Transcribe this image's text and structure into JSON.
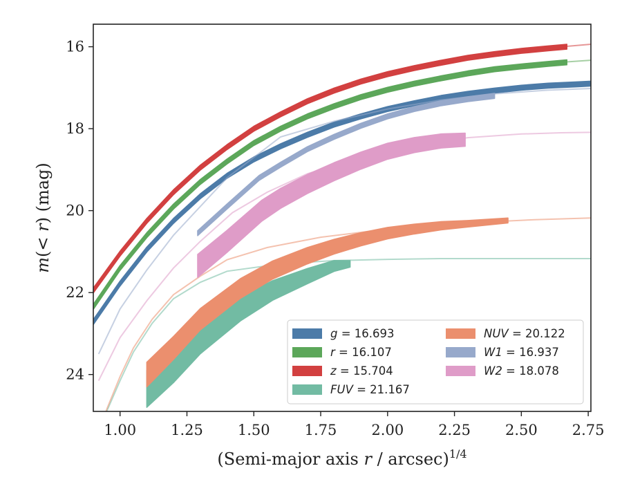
{
  "chart_data": {
    "type": "line",
    "title": "",
    "xlabel_main": "(Semi-major axis ",
    "xlabel_var": "r",
    "xlabel_unit": " / arcsec)",
    "xlabel_sup": "1/4",
    "ylabel_pre": "m(< ",
    "ylabel_var": "r",
    "ylabel_post": ") (mag)",
    "xlim": [
      0.9,
      2.76
    ],
    "ylim": [
      15.45,
      24.9
    ],
    "y_inverted": true,
    "xticks": [
      1.0,
      1.25,
      1.5,
      1.75,
      2.0,
      2.25,
      2.5,
      2.75
    ],
    "xtick_labels": [
      "1.00",
      "1.25",
      "1.50",
      "1.75",
      "2.00",
      "2.25",
      "2.50",
      "2.75"
    ],
    "yticks": [
      16,
      18,
      20,
      22,
      24
    ],
    "ytick_labels": [
      "16",
      "18",
      "20",
      "22",
      "24"
    ],
    "grid": false,
    "legend_position": "lower-right",
    "series": [
      {
        "name": "g",
        "legend_label": "g = 16.693",
        "color": "#4c7ba8",
        "band": 0.06,
        "x": [
          0.9,
          1.0,
          1.1,
          1.2,
          1.3,
          1.4,
          1.5,
          1.6,
          1.7,
          1.8,
          1.9,
          2.0,
          2.1,
          2.2,
          2.3,
          2.4,
          2.5,
          2.6,
          2.7,
          2.76
        ],
        "y": [
          22.72,
          21.78,
          20.95,
          20.25,
          19.65,
          19.15,
          18.75,
          18.43,
          18.15,
          17.9,
          17.7,
          17.52,
          17.38,
          17.25,
          17.15,
          17.07,
          17.0,
          16.95,
          16.92,
          16.9
        ],
        "y_model": [
          22.75,
          21.8,
          20.96,
          20.26,
          19.66,
          19.16,
          18.76,
          18.44,
          18.16,
          17.91,
          17.71,
          17.53,
          17.39,
          17.26,
          17.15,
          17.07,
          17.0,
          16.95,
          16.92,
          16.9
        ],
        "x_end": 2.76
      },
      {
        "name": "r",
        "legend_label": "r = 16.107",
        "color": "#5ca75a",
        "band": 0.06,
        "x": [
          0.9,
          1.0,
          1.1,
          1.2,
          1.3,
          1.4,
          1.5,
          1.6,
          1.7,
          1.8,
          1.9,
          2.0,
          2.1,
          2.2,
          2.3,
          2.4,
          2.5,
          2.6,
          2.67
        ],
        "y": [
          22.35,
          21.4,
          20.6,
          19.9,
          19.3,
          18.8,
          18.35,
          18.0,
          17.7,
          17.45,
          17.23,
          17.05,
          16.9,
          16.77,
          16.65,
          16.55,
          16.48,
          16.42,
          16.38
        ],
        "y_model": [
          22.38,
          21.42,
          20.61,
          19.91,
          19.31,
          18.81,
          18.36,
          18.01,
          17.71,
          17.46,
          17.24,
          17.06,
          16.9,
          16.77,
          16.65,
          16.55,
          16.47,
          16.41,
          16.37,
          16.33
        ],
        "x_model": [
          0.9,
          1.0,
          1.1,
          1.2,
          1.3,
          1.4,
          1.5,
          1.6,
          1.7,
          1.8,
          1.9,
          2.0,
          2.1,
          2.2,
          2.3,
          2.4,
          2.5,
          2.6,
          2.67,
          2.76
        ]
      },
      {
        "name": "z",
        "legend_label": "z = 15.704",
        "color": "#d24040",
        "band": 0.06,
        "x": [
          0.9,
          1.0,
          1.1,
          1.2,
          1.3,
          1.4,
          1.5,
          1.6,
          1.7,
          1.8,
          1.9,
          2.0,
          2.1,
          2.2,
          2.3,
          2.4,
          2.5,
          2.6,
          2.67
        ],
        "y": [
          21.95,
          21.05,
          20.25,
          19.55,
          18.95,
          18.45,
          18.0,
          17.65,
          17.33,
          17.07,
          16.85,
          16.67,
          16.52,
          16.39,
          16.27,
          16.18,
          16.1,
          16.04,
          16.0
        ],
        "y_model": [
          21.98,
          21.07,
          20.26,
          19.56,
          18.96,
          18.46,
          18.01,
          17.66,
          17.34,
          17.08,
          16.86,
          16.68,
          16.53,
          16.4,
          16.28,
          16.18,
          16.1,
          16.03,
          15.99,
          15.94
        ],
        "x_model": [
          0.9,
          1.0,
          1.1,
          1.2,
          1.3,
          1.4,
          1.5,
          1.6,
          1.7,
          1.8,
          1.9,
          2.0,
          2.1,
          2.2,
          2.3,
          2.4,
          2.5,
          2.6,
          2.67,
          2.76
        ]
      },
      {
        "name": "FUV",
        "legend_label": "FUV = 21.167",
        "color": "#72bba3",
        "band_start": 0.45,
        "band_end": 0.08,
        "x": [
          1.1,
          1.2,
          1.3,
          1.45,
          1.57,
          1.7,
          1.8,
          1.86
        ],
        "y": [
          24.35,
          23.8,
          23.15,
          22.4,
          21.95,
          21.6,
          21.35,
          21.3
        ],
        "y_model": [
          26.0,
          24.9,
          24.15,
          23.45,
          22.75,
          22.15,
          21.75,
          21.48,
          21.3,
          21.22,
          21.19,
          21.17,
          21.17,
          21.17
        ],
        "x_model": [
          0.9,
          0.95,
          1.0,
          1.05,
          1.12,
          1.2,
          1.3,
          1.4,
          1.6,
          1.8,
          2.0,
          2.2,
          2.5,
          2.76
        ]
      },
      {
        "name": "NUV",
        "legend_label": "NUV = 20.122",
        "color": "#eb8f6e",
        "band_start": 0.3,
        "band_end": 0.06,
        "x": [
          1.1,
          1.2,
          1.3,
          1.45,
          1.57,
          1.7,
          1.8,
          1.9,
          2.0,
          2.1,
          2.2,
          2.3,
          2.45
        ],
        "y": [
          24.0,
          23.35,
          22.65,
          21.9,
          21.45,
          21.1,
          20.88,
          20.7,
          20.55,
          20.45,
          20.37,
          20.32,
          20.24
        ],
        "y_model": [
          25.8,
          24.85,
          24.05,
          23.35,
          22.65,
          22.05,
          21.6,
          21.2,
          20.9,
          20.65,
          20.45,
          20.3,
          20.22,
          20.18
        ],
        "x_model": [
          0.9,
          0.95,
          1.0,
          1.05,
          1.12,
          1.2,
          1.3,
          1.4,
          1.55,
          1.75,
          2.0,
          2.3,
          2.55,
          2.76
        ]
      },
      {
        "name": "W1",
        "legend_label": "W1 = 16.937",
        "color": "#97a9cb",
        "band": 0.06,
        "x": [
          1.29,
          1.4,
          1.52,
          1.6,
          1.7,
          1.8,
          1.9,
          2.0,
          2.1,
          2.2,
          2.3,
          2.4
        ],
        "y": [
          20.55,
          19.9,
          19.2,
          18.88,
          18.5,
          18.2,
          17.93,
          17.7,
          17.52,
          17.38,
          17.28,
          17.2
        ],
        "y_model": [
          23.5,
          22.4,
          21.45,
          20.6,
          19.9,
          19.2,
          18.7,
          18.2,
          17.82,
          17.52,
          17.3,
          17.15,
          17.06,
          17.02
        ],
        "x_model": [
          0.92,
          1.0,
          1.1,
          1.2,
          1.3,
          1.4,
          1.5,
          1.6,
          1.8,
          2.0,
          2.2,
          2.4,
          2.6,
          2.76
        ]
      },
      {
        "name": "W2",
        "legend_label": "W2 = 18.078",
        "color": "#df9cc8",
        "band_start": 0.28,
        "band_end": 0.16,
        "x": [
          1.29,
          1.4,
          1.53,
          1.6,
          1.7,
          1.8,
          1.9,
          2.0,
          2.1,
          2.2,
          2.29
        ],
        "y": [
          21.35,
          20.75,
          20.0,
          19.7,
          19.35,
          19.05,
          18.78,
          18.55,
          18.4,
          18.3,
          18.27
        ],
        "y_model": [
          24.15,
          23.1,
          22.2,
          21.4,
          20.75,
          20.05,
          19.55,
          19.1,
          18.7,
          18.4,
          18.22,
          18.13,
          18.1,
          18.09
        ],
        "x_model": [
          0.92,
          1.0,
          1.1,
          1.2,
          1.3,
          1.42,
          1.55,
          1.7,
          1.9,
          2.1,
          2.3,
          2.5,
          2.65,
          2.76
        ]
      }
    ],
    "legend": [
      {
        "prefix": "g",
        "rest": " = 16.693",
        "color": "#4c7ba8"
      },
      {
        "prefix": "r",
        "rest": " = 16.107",
        "color": "#5ca75a"
      },
      {
        "prefix": "z",
        "rest": " = 15.704",
        "color": "#d24040"
      },
      {
        "prefix": "FUV",
        "rest": " = 21.167",
        "color": "#72bba3"
      },
      {
        "prefix": "NUV",
        "rest": " = 20.122",
        "color": "#eb8f6e"
      },
      {
        "prefix": "W1",
        "rest": " = 16.937",
        "color": "#97a9cb"
      },
      {
        "prefix": "W2",
        "rest": " = 18.078",
        "color": "#df9cc8"
      }
    ]
  }
}
